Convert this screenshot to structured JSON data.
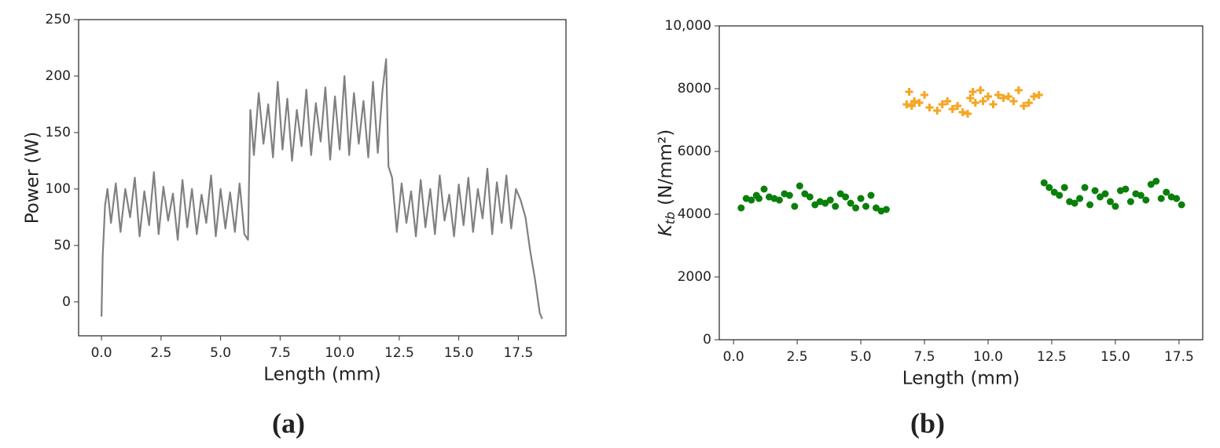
{
  "chart_data": [
    {
      "type": "line",
      "caption": "(a)",
      "xlabel": "Length (mm)",
      "ylabel": "Power (W)",
      "xlim": [
        -0.96,
        19.5
      ],
      "ylim": [
        -30,
        250
      ],
      "xticks": [
        {
          "value": 0,
          "label": "0.0"
        },
        2.5,
        {
          "value": 5,
          "label": "5.0"
        },
        7.5,
        {
          "value": 10,
          "label": "10.0"
        },
        12.5,
        {
          "value": 15,
          "label": "15.0"
        },
        17.5
      ],
      "yticks": [
        0,
        50,
        100,
        150,
        200,
        250
      ],
      "series": [
        {
          "color": "#808080",
          "x": [
            0,
            0.05,
            0.15,
            0.25,
            0.4,
            0.6,
            0.8,
            1,
            1.2,
            1.4,
            1.6,
            1.8,
            2,
            2.2,
            2.4,
            2.6,
            2.8,
            3,
            3.2,
            3.4,
            3.6,
            3.8,
            4,
            4.2,
            4.4,
            4.6,
            4.8,
            5,
            5.2,
            5.4,
            5.6,
            5.8,
            6,
            6.15,
            6.25,
            6.4,
            6.6,
            6.8,
            7,
            7.2,
            7.4,
            7.6,
            7.8,
            8,
            8.2,
            8.4,
            8.6,
            8.8,
            9,
            9.2,
            9.4,
            9.6,
            9.8,
            10,
            10.2,
            10.4,
            10.6,
            10.8,
            11,
            11.2,
            11.4,
            11.6,
            11.8,
            11.95,
            12.05,
            12.2,
            12.4,
            12.6,
            12.8,
            13,
            13.2,
            13.4,
            13.6,
            13.8,
            14,
            14.2,
            14.4,
            14.6,
            14.8,
            15,
            15.2,
            15.4,
            15.6,
            15.8,
            16,
            16.2,
            16.4,
            16.6,
            16.8,
            17,
            17.2,
            17.4,
            17.6,
            17.8,
            18,
            18.2,
            18.4,
            18.5
          ],
          "values": [
            -13,
            40,
            85,
            100,
            70,
            105,
            62,
            100,
            75,
            110,
            58,
            98,
            68,
            115,
            60,
            102,
            72,
            96,
            55,
            108,
            66,
            100,
            60,
            95,
            70,
            112,
            58,
            100,
            65,
            97,
            62,
            105,
            60,
            55,
            170,
            130,
            185,
            140,
            175,
            128,
            195,
            135,
            180,
            125,
            170,
            138,
            188,
            130,
            176,
            142,
            190,
            126,
            182,
            135,
            200,
            130,
            185,
            140,
            178,
            128,
            195,
            132,
            188,
            215,
            120,
            110,
            62,
            105,
            70,
            98,
            58,
            108,
            66,
            100,
            60,
            112,
            72,
            95,
            58,
            104,
            68,
            110,
            62,
            100,
            74,
            118,
            60,
            106,
            70,
            112,
            65,
            100,
            90,
            75,
            45,
            20,
            -10,
            -15
          ]
        }
      ]
    },
    {
      "type": "scatter",
      "caption": "(b)",
      "xlabel": "Length (mm)",
      "ylabel": {
        "symbol": "K",
        "subscript": "tb",
        "unit": "(N/mm²)"
      },
      "xlim": [
        -0.56,
        18.43
      ],
      "ylim": [
        0,
        10000
      ],
      "xticks": [
        {
          "value": 0,
          "label": "0.0"
        },
        2.5,
        {
          "value": 5,
          "label": "5.0"
        },
        7.5,
        {
          "value": 10,
          "label": "10.0"
        },
        12.5,
        {
          "value": 15,
          "label": "15.0"
        },
        17.5
      ],
      "yticks": [
        0,
        2000,
        4000,
        6000,
        8000,
        {
          "value": 10000,
          "label": "10,000"
        }
      ],
      "series": [
        {
          "color": "#0b7f0b",
          "marker": "circle",
          "x": [
            0.3,
            0.5,
            0.7,
            0.9,
            1.0,
            1.2,
            1.4,
            1.6,
            1.8,
            2.0,
            2.2,
            2.4,
            2.6,
            2.8,
            3.0,
            3.2,
            3.4,
            3.6,
            3.8,
            4.0,
            4.2,
            4.4,
            4.6,
            4.8,
            5.0,
            5.2,
            5.4,
            5.6,
            5.8,
            6.0,
            12.2,
            12.4,
            12.6,
            12.8,
            13.0,
            13.2,
            13.4,
            13.6,
            13.8,
            14.0,
            14.2,
            14.4,
            14.6,
            14.8,
            15.0,
            15.2,
            15.4,
            15.6,
            15.8,
            16.0,
            16.2,
            16.4,
            16.6,
            16.8,
            17.0,
            17.2,
            17.4,
            17.6
          ],
          "values": [
            4200,
            4500,
            4450,
            4600,
            4500,
            4800,
            4550,
            4500,
            4450,
            4650,
            4600,
            4250,
            4900,
            4650,
            4550,
            4300,
            4400,
            4350,
            4450,
            4250,
            4650,
            4550,
            4350,
            4200,
            4500,
            4250,
            4600,
            4200,
            4100,
            4150,
            5000,
            4850,
            4700,
            4600,
            4850,
            4400,
            4350,
            4500,
            4850,
            4300,
            4750,
            4550,
            4650,
            4400,
            4250,
            4750,
            4800,
            4400,
            4650,
            4600,
            4450,
            4950,
            5050,
            4500,
            4700,
            4550,
            4500,
            4300
          ]
        },
        {
          "color": "#f5a623",
          "marker": "plus",
          "x": [
            6.8,
            6.9,
            7.0,
            7.1,
            7.3,
            7.5,
            7.7,
            8.0,
            8.2,
            8.4,
            8.6,
            8.8,
            9.0,
            9.2,
            9.3,
            9.4,
            9.5,
            9.7,
            9.8,
            10.0,
            10.2,
            10.4,
            10.6,
            10.8,
            11.0,
            11.2,
            11.4,
            11.6,
            11.8,
            12.0
          ],
          "values": [
            7500,
            7900,
            7450,
            7600,
            7550,
            7800,
            7400,
            7300,
            7500,
            7600,
            7350,
            7450,
            7250,
            7200,
            7700,
            7900,
            7550,
            7950,
            7600,
            7750,
            7500,
            7800,
            7700,
            7750,
            7600,
            7950,
            7450,
            7550,
            7750,
            7800
          ]
        }
      ]
    }
  ]
}
